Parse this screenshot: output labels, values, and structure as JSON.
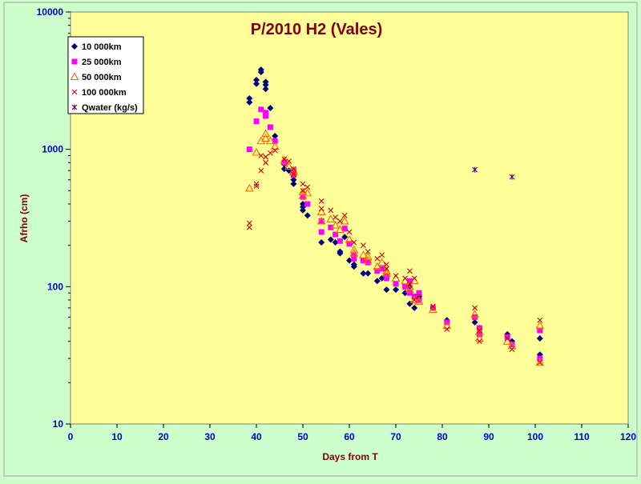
{
  "chart_data": {
    "type": "scatter",
    "title": "P/2010 H2 (Vales)",
    "xlabel": "Days from T",
    "ylabel": "Afrho (cm)",
    "xlim": [
      0,
      120
    ],
    "ylim": [
      10,
      10000
    ],
    "yscale": "log",
    "grid": false,
    "legend_position": "top-left",
    "x_ticks": [
      "0",
      "10",
      "20",
      "30",
      "40",
      "50",
      "60",
      "70",
      "80",
      "90",
      "100",
      "110",
      "120"
    ],
    "y_ticks": [
      "10",
      "100",
      "1000",
      "10000"
    ],
    "colors": {
      "background": "#ccffcc",
      "plot_area": "#ffff99",
      "title": "#800000",
      "axis_label": "#800000",
      "tick_label": "#0000cc"
    },
    "series": [
      {
        "name": "10 000km",
        "marker": "diamond",
        "color": "#000080",
        "points": [
          [
            38.5,
            2200
          ],
          [
            38.5,
            2350
          ],
          [
            40,
            3000
          ],
          [
            40,
            3200
          ],
          [
            41,
            3650
          ],
          [
            41,
            3800
          ],
          [
            42,
            2750
          ],
          [
            42,
            2950
          ],
          [
            42,
            3100
          ],
          [
            43,
            2000
          ],
          [
            44,
            1250
          ],
          [
            46,
            720
          ],
          [
            46,
            780
          ],
          [
            47,
            700
          ],
          [
            48,
            560
          ],
          [
            48,
            600
          ],
          [
            50,
            380
          ],
          [
            50,
            400
          ],
          [
            50,
            360
          ],
          [
            51,
            330
          ],
          [
            54,
            210
          ],
          [
            56,
            220
          ],
          [
            57,
            210
          ],
          [
            58,
            180
          ],
          [
            58,
            175
          ],
          [
            59,
            230
          ],
          [
            60,
            155
          ],
          [
            61,
            140
          ],
          [
            61,
            145
          ],
          [
            63,
            125
          ],
          [
            64,
            125
          ],
          [
            66,
            110
          ],
          [
            67,
            115
          ],
          [
            68,
            95
          ],
          [
            70,
            95
          ],
          [
            72,
            90
          ],
          [
            73,
            75
          ],
          [
            73,
            100
          ],
          [
            74,
            70
          ],
          [
            75,
            85
          ],
          [
            81,
            57
          ],
          [
            87,
            55
          ],
          [
            88,
            50
          ],
          [
            94,
            45
          ],
          [
            95,
            40
          ],
          [
            101,
            32
          ],
          [
            101,
            42
          ]
        ]
      },
      {
        "name": "25 000km",
        "marker": "square",
        "color": "#ff00ff",
        "points": [
          [
            38.5,
            1000
          ],
          [
            40,
            1600
          ],
          [
            41,
            1950
          ],
          [
            42,
            1750
          ],
          [
            42,
            1850
          ],
          [
            43,
            1450
          ],
          [
            44,
            1150
          ],
          [
            46,
            800
          ],
          [
            48,
            650
          ],
          [
            48,
            700
          ],
          [
            50,
            450
          ],
          [
            51,
            400
          ],
          [
            54,
            300
          ],
          [
            54,
            250
          ],
          [
            56,
            270
          ],
          [
            57,
            240
          ],
          [
            58,
            215
          ],
          [
            59,
            265
          ],
          [
            60,
            205
          ],
          [
            61,
            170
          ],
          [
            61,
            160
          ],
          [
            63,
            155
          ],
          [
            64,
            150
          ],
          [
            66,
            130
          ],
          [
            67,
            135
          ],
          [
            68,
            115
          ],
          [
            68,
            120
          ],
          [
            70,
            105
          ],
          [
            72,
            100
          ],
          [
            73,
            90
          ],
          [
            73,
            110
          ],
          [
            74,
            85
          ],
          [
            75,
            90
          ],
          [
            75,
            80
          ],
          [
            78,
            70
          ],
          [
            81,
            55
          ],
          [
            87,
            60
          ],
          [
            88,
            50
          ],
          [
            88,
            45
          ],
          [
            94,
            43
          ],
          [
            95,
            38
          ],
          [
            101,
            30
          ],
          [
            101,
            48
          ]
        ]
      },
      {
        "name": "50 000km",
        "marker": "triangle",
        "color": "#ff6600",
        "points": [
          [
            38.5,
            520
          ],
          [
            40,
            950
          ],
          [
            41,
            1150
          ],
          [
            42,
            1200
          ],
          [
            42,
            1300
          ],
          [
            43,
            1150
          ],
          [
            44,
            1050
          ],
          [
            46,
            830
          ],
          [
            47,
            750
          ],
          [
            48,
            700
          ],
          [
            48,
            680
          ],
          [
            50,
            490
          ],
          [
            50,
            460
          ],
          [
            51,
            480
          ],
          [
            54,
            350
          ],
          [
            54,
            300
          ],
          [
            56,
            310
          ],
          [
            57,
            280
          ],
          [
            58,
            260
          ],
          [
            59,
            300
          ],
          [
            60,
            220
          ],
          [
            61,
            185
          ],
          [
            61,
            175
          ],
          [
            63,
            170
          ],
          [
            64,
            155
          ],
          [
            64,
            165
          ],
          [
            66,
            140
          ],
          [
            67,
            150
          ],
          [
            68,
            125
          ],
          [
            68,
            130
          ],
          [
            70,
            115
          ],
          [
            72,
            110
          ],
          [
            73,
            100
          ],
          [
            73,
            95
          ],
          [
            74,
            80
          ],
          [
            74,
            110
          ],
          [
            75,
            78
          ],
          [
            78,
            68
          ],
          [
            81,
            52
          ],
          [
            87,
            63
          ],
          [
            88,
            47
          ],
          [
            88,
            42
          ],
          [
            94,
            40
          ],
          [
            95,
            37
          ],
          [
            101,
            28
          ],
          [
            101,
            52
          ]
        ]
      },
      {
        "name": "100 000km",
        "marker": "x",
        "color": "#cc0000",
        "points": [
          [
            38.5,
            270
          ],
          [
            38.5,
            290
          ],
          [
            40,
            540
          ],
          [
            40,
            560
          ],
          [
            41,
            700
          ],
          [
            41,
            900
          ],
          [
            42,
            800
          ],
          [
            42,
            880
          ],
          [
            43,
            940
          ],
          [
            44,
            980
          ],
          [
            46,
            850
          ],
          [
            47,
            820
          ],
          [
            48,
            720
          ],
          [
            48,
            660
          ],
          [
            50,
            560
          ],
          [
            50,
            500
          ],
          [
            51,
            530
          ],
          [
            54,
            420
          ],
          [
            54,
            370
          ],
          [
            56,
            360
          ],
          [
            57,
            320
          ],
          [
            58,
            300
          ],
          [
            59,
            330
          ],
          [
            60,
            250
          ],
          [
            61,
            210
          ],
          [
            63,
            200
          ],
          [
            64,
            180
          ],
          [
            66,
            160
          ],
          [
            67,
            170
          ],
          [
            68,
            135
          ],
          [
            68,
            145
          ],
          [
            70,
            120
          ],
          [
            72,
            115
          ],
          [
            73,
            105
          ],
          [
            73,
            130
          ],
          [
            74,
            80
          ],
          [
            74,
            115
          ],
          [
            75,
            85
          ],
          [
            78,
            72
          ],
          [
            81,
            49
          ],
          [
            87,
            70
          ],
          [
            88,
            48
          ],
          [
            88,
            40
          ],
          [
            94,
            42
          ],
          [
            95,
            35
          ],
          [
            101,
            28
          ],
          [
            101,
            57
          ]
        ]
      },
      {
        "name": "Qwater (kg/s)",
        "marker": "asterisk",
        "color": "#660066",
        "points": [
          [
            87,
            710
          ],
          [
            95,
            630
          ]
        ]
      }
    ]
  }
}
